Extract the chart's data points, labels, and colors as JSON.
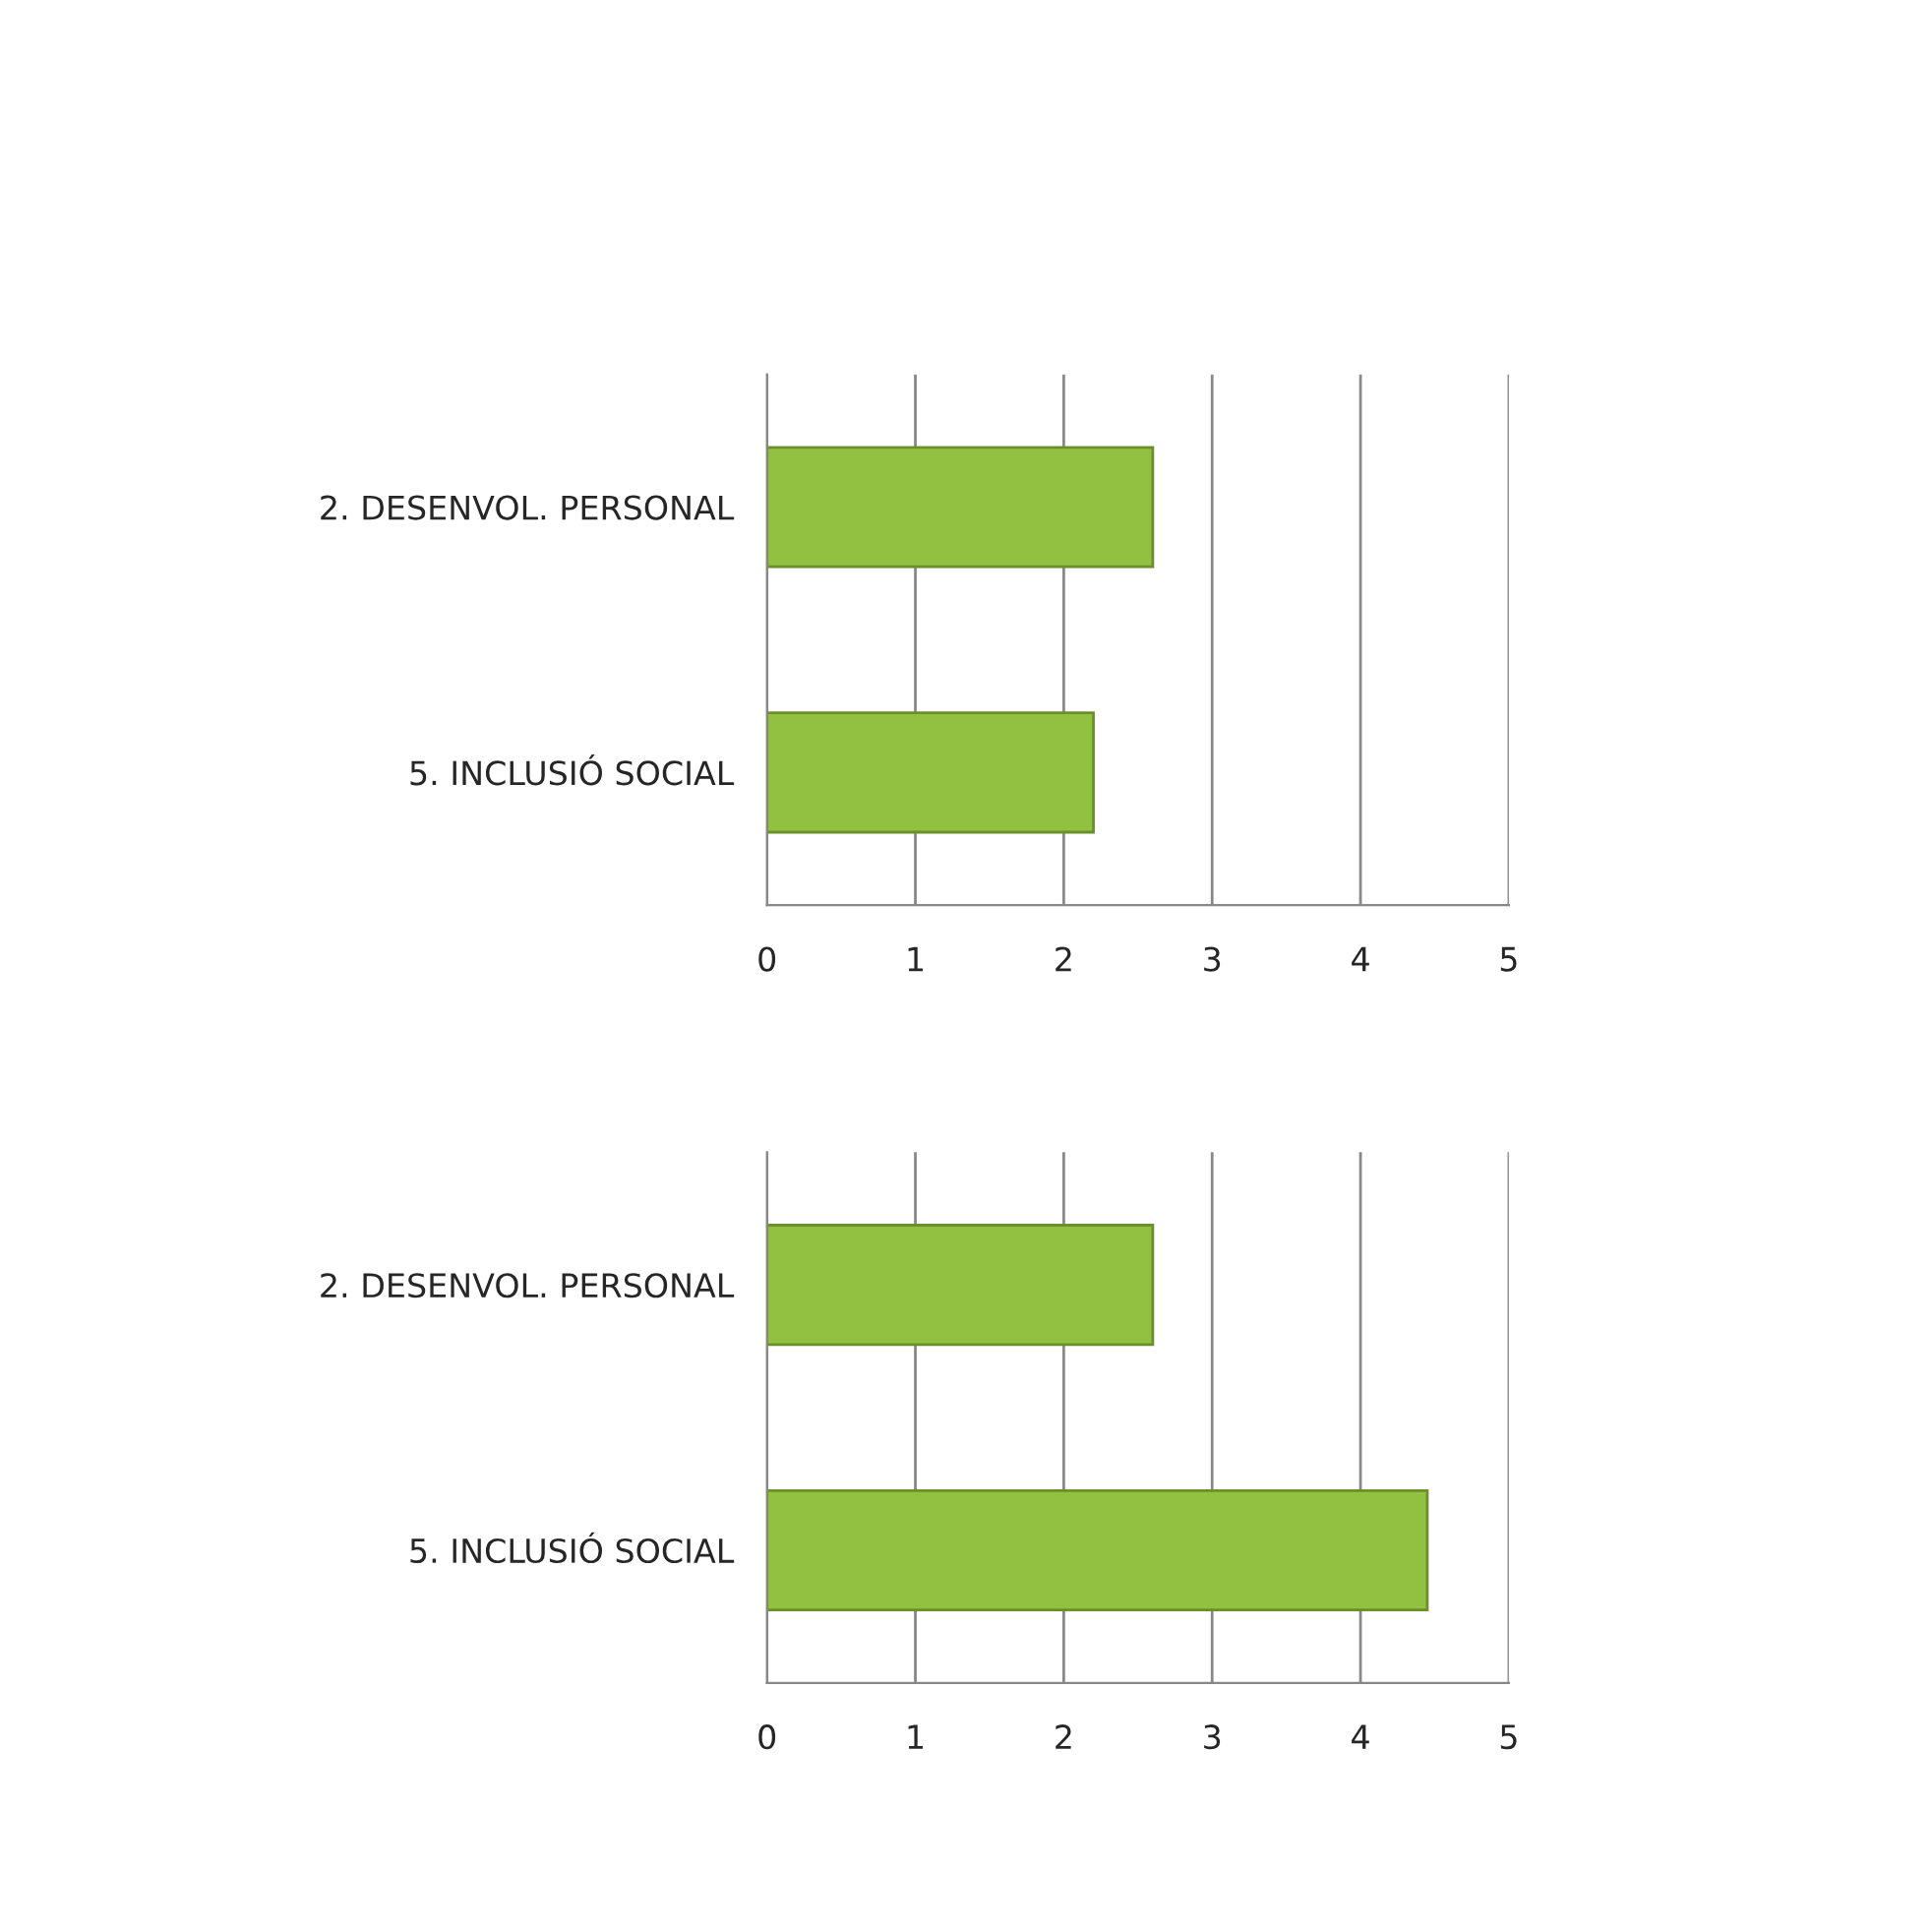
{
  "chart_data": [
    {
      "type": "bar",
      "orientation": "horizontal",
      "categories": [
        "2. DESENVOL. PERSONAL",
        "5. INCLUSIÓ SOCIAL"
      ],
      "values": [
        2.6,
        2.2
      ],
      "color": "#92c040",
      "xlim": [
        0,
        5
      ],
      "xticks": [
        0,
        1,
        2,
        3,
        4,
        5
      ],
      "grid": "x",
      "legend": false
    },
    {
      "type": "bar",
      "orientation": "horizontal",
      "categories": [
        "2. DESENVOL. PERSONAL",
        "5. INCLUSIÓ SOCIAL"
      ],
      "values": [
        2.6,
        4.45
      ],
      "color": "#92c040",
      "xlim": [
        0,
        5
      ],
      "xticks": [
        0,
        1,
        2,
        3,
        4,
        5
      ],
      "grid": "x",
      "legend": false
    }
  ]
}
